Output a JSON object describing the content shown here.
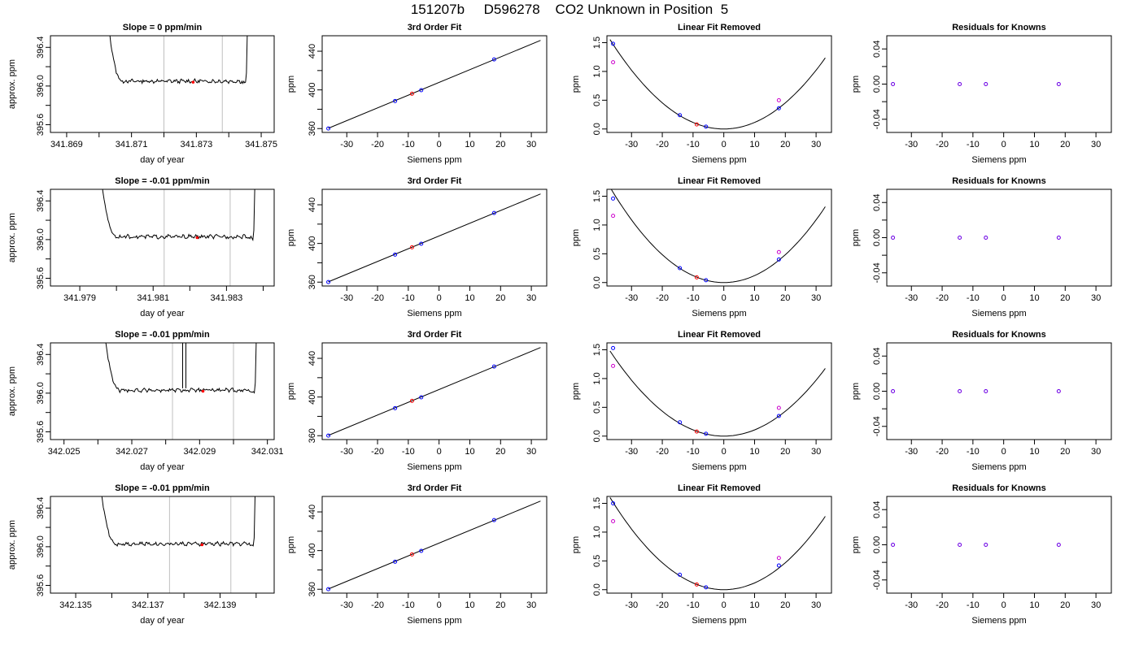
{
  "figure_title": "151207b     D596278    CO2 Unknown in Position  5",
  "colors": {
    "line": "#000000",
    "frame": "#000000",
    "marker_red": "#ff0000",
    "marker_blue": "#0000ff",
    "marker_magenta": "#cc00cc",
    "vline": "#bfbfbf"
  },
  "chart_data": [
    {
      "row": 0,
      "panel": "timeseries",
      "type": "line",
      "title": "Slope =  0  ppm/min",
      "xlabel": "day of year",
      "ylabel": "approx. ppm",
      "xlim": [
        341.8685,
        341.8754
      ],
      "ylim": [
        395.52,
        396.52
      ],
      "xticks": [
        341.869,
        341.871,
        341.873,
        341.875
      ],
      "xticklabels": [
        "341.869",
        "341.871",
        "341.873",
        "341.875"
      ],
      "xminor": [
        341.87,
        341.872,
        341.874
      ],
      "yticks": [
        395.6,
        396.0,
        396.4
      ],
      "yticklabels": [
        "395.6",
        "396.0",
        "396.4"
      ],
      "yminor": [
        395.8,
        396.2
      ],
      "trace_start": 341.8702,
      "trace_end": 341.8746,
      "baseline": 396.05,
      "vlines": [
        341.872,
        341.8738
      ],
      "marker": {
        "x": 341.8729,
        "y": 396.04
      }
    },
    {
      "row": 0,
      "panel": "fit",
      "type": "scatter",
      "title": "3rd Order Fit",
      "xlabel": "Siemens ppm",
      "ylabel": "ppm",
      "xlim": [
        -38,
        35
      ],
      "ylim": [
        356,
        456
      ],
      "xticks": [
        -30,
        -20,
        -10,
        0,
        10,
        20,
        30
      ],
      "xticklabels": [
        "-30",
        "-20",
        "-10",
        "0",
        "10",
        "20",
        "30"
      ],
      "yticks": [
        360,
        400,
        440
      ],
      "yticklabels": [
        "360",
        "400",
        "440"
      ],
      "yminor": [
        380,
        420
      ],
      "line": {
        "x": [
          -36,
          33
        ],
        "y": [
          360.3,
          451.2
        ]
      },
      "knowns": {
        "x": [
          -36.0,
          -14.3,
          -5.8,
          17.9
        ],
        "y": [
          360.1,
          388.5,
          399.7,
          431.5
        ]
      },
      "unknown": {
        "x": [
          -8.8
        ],
        "y": [
          396.0
        ]
      }
    },
    {
      "row": 0,
      "panel": "residual_linear",
      "type": "scatter",
      "title": "Linear Fit Removed",
      "xlabel": "Siemens ppm",
      "ylabel": "ppm",
      "xlim": [
        -38,
        35
      ],
      "ylim": [
        -0.06,
        1.62
      ],
      "xticks": [
        -30,
        -20,
        -10,
        0,
        10,
        20,
        30
      ],
      "xticklabels": [
        "-30",
        "-20",
        "-10",
        "0",
        "10",
        "20",
        "30"
      ],
      "yticks": [
        0.0,
        0.5,
        1.0,
        1.5
      ],
      "yticklabels": [
        "0.0",
        "0.5",
        "1.0",
        "1.5"
      ],
      "curve_coef": 0.001135,
      "knowns": {
        "x": [
          -36.0,
          -14.3,
          -5.8,
          17.9
        ],
        "y": [
          1.48,
          0.24,
          0.04,
          0.36
        ]
      },
      "knowns_alt": {
        "x": [
          -36.0,
          17.9
        ],
        "y": [
          1.16,
          0.5
        ]
      },
      "unknown": {
        "x": [
          -8.8
        ],
        "y": [
          0.08
        ]
      }
    },
    {
      "row": 0,
      "panel": "residual_knowns",
      "type": "scatter",
      "title": "Residuals for Knowns",
      "xlabel": "Siemens ppm",
      "ylabel": "ppm",
      "xlim": [
        -38,
        35
      ],
      "ylim": [
        -0.055,
        0.055
      ],
      "xticks": [
        -30,
        -20,
        -10,
        0,
        10,
        20,
        30
      ],
      "xticklabels": [
        "-30",
        "-20",
        "-10",
        "0",
        "10",
        "20",
        "30"
      ],
      "yticks": [
        -0.04,
        0.0,
        0.04
      ],
      "yticklabels": [
        "-0.04",
        "0.00",
        "0.04"
      ],
      "yminor": [
        -0.02,
        0.02
      ],
      "knowns": {
        "x": [
          -36.0,
          -14.3,
          -5.8,
          17.9
        ],
        "y": [
          0,
          0,
          0,
          0
        ]
      }
    },
    {
      "row": 1,
      "panel": "timeseries",
      "type": "line",
      "title": "Slope =  -0.01  ppm/min",
      "xlabel": "day of year",
      "ylabel": "approx. ppm",
      "xlim": [
        341.9782,
        341.9843
      ],
      "ylim": [
        395.52,
        396.52
      ],
      "xticks": [
        341.979,
        341.981,
        341.983
      ],
      "xticklabels": [
        "341.979",
        "341.981",
        "341.983"
      ],
      "xminor": [
        341.98,
        341.982,
        341.984
      ],
      "yticks": [
        395.6,
        396.0,
        396.4
      ],
      "yticklabels": [
        "395.6",
        "396.0",
        "396.4"
      ],
      "yminor": [
        395.8,
        396.2
      ],
      "trace_start": 341.9795,
      "trace_end": 341.9838,
      "baseline": 396.03,
      "vlines": [
        341.9813,
        341.9831
      ],
      "marker": {
        "x": 341.9822,
        "y": 396.02
      }
    },
    {
      "row": 1,
      "panel": "fit",
      "type": "scatter",
      "title": "3rd Order Fit",
      "xlabel": "Siemens ppm",
      "ylabel": "ppm",
      "xlim": [
        -38,
        35
      ],
      "ylim": [
        356,
        456
      ],
      "xticks": [
        -30,
        -20,
        -10,
        0,
        10,
        20,
        30
      ],
      "xticklabels": [
        "-30",
        "-20",
        "-10",
        "0",
        "10",
        "20",
        "30"
      ],
      "yticks": [
        360,
        400,
        440
      ],
      "yticklabels": [
        "360",
        "400",
        "440"
      ],
      "yminor": [
        380,
        420
      ],
      "line": {
        "x": [
          -36,
          33
        ],
        "y": [
          360.3,
          451.2
        ]
      },
      "knowns": {
        "x": [
          -36.0,
          -14.3,
          -5.8,
          17.9
        ],
        "y": [
          360.1,
          388.5,
          399.7,
          431.5
        ]
      },
      "unknown": {
        "x": [
          -8.8
        ],
        "y": [
          396.0
        ]
      }
    },
    {
      "row": 1,
      "panel": "residual_linear",
      "type": "scatter",
      "title": "Linear Fit Removed",
      "xlabel": "Siemens ppm",
      "ylabel": "ppm",
      "xlim": [
        -38,
        35
      ],
      "ylim": [
        -0.06,
        1.62
      ],
      "xticks": [
        -30,
        -20,
        -10,
        0,
        10,
        20,
        30
      ],
      "xticklabels": [
        "-30",
        "-20",
        "-10",
        "0",
        "10",
        "20",
        "30"
      ],
      "yticks": [
        0.0,
        0.5,
        1.0,
        1.5
      ],
      "yticklabels": [
        "0.0",
        "0.5",
        "1.0",
        "1.5"
      ],
      "curve_coef": 0.00121,
      "knowns": {
        "x": [
          -36.0,
          -14.3,
          -5.8,
          17.9
        ],
        "y": [
          1.46,
          0.25,
          0.04,
          0.4
        ]
      },
      "knowns_alt": {
        "x": [
          -36.0,
          17.9
        ],
        "y": [
          1.16,
          0.53
        ]
      },
      "unknown": {
        "x": [
          -8.8
        ],
        "y": [
          0.09
        ]
      }
    },
    {
      "row": 1,
      "panel": "residual_knowns",
      "type": "scatter",
      "title": "Residuals for Knowns",
      "xlabel": "Siemens ppm",
      "ylabel": "ppm",
      "xlim": [
        -38,
        35
      ],
      "ylim": [
        -0.055,
        0.055
      ],
      "xticks": [
        -30,
        -20,
        -10,
        0,
        10,
        20,
        30
      ],
      "xticklabels": [
        "-30",
        "-20",
        "-10",
        "0",
        "10",
        "20",
        "30"
      ],
      "yticks": [
        -0.04,
        0.0,
        0.04
      ],
      "yticklabels": [
        "-0.04",
        "0.00",
        "0.04"
      ],
      "yminor": [
        -0.02,
        0.02
      ],
      "knowns": {
        "x": [
          -36.0,
          -14.3,
          -5.8,
          17.9
        ],
        "y": [
          0,
          0,
          0,
          0
        ]
      }
    },
    {
      "row": 2,
      "panel": "timeseries",
      "type": "line",
      "title": "Slope =  -0.01  ppm/min",
      "xlabel": "day of year",
      "ylabel": "approx. ppm",
      "xlim": [
        342.0246,
        342.0312
      ],
      "ylim": [
        395.52,
        396.52
      ],
      "xticks": [
        342.025,
        342.027,
        342.029,
        342.031
      ],
      "xticklabels": [
        "342.025",
        "342.027",
        "342.029",
        "342.031"
      ],
      "xminor": [
        342.026,
        342.028,
        342.03
      ],
      "yticks": [
        395.6,
        396.0,
        396.4
      ],
      "yticklabels": [
        "395.6",
        "396.0",
        "396.4"
      ],
      "yminor": [
        395.8,
        396.2
      ],
      "trace_start": 342.0261,
      "trace_end": 342.0307,
      "baseline": 396.03,
      "vlines": [
        342.0282,
        342.03
      ],
      "spike": 342.0285,
      "marker": {
        "x": 342.0291,
        "y": 396.02
      }
    },
    {
      "row": 2,
      "panel": "fit",
      "type": "scatter",
      "title": "3rd Order Fit",
      "xlabel": "Siemens ppm",
      "ylabel": "ppm",
      "xlim": [
        -38,
        35
      ],
      "ylim": [
        356,
        456
      ],
      "xticks": [
        -30,
        -20,
        -10,
        0,
        10,
        20,
        30
      ],
      "xticklabels": [
        "-30",
        "-20",
        "-10",
        "0",
        "10",
        "20",
        "30"
      ],
      "yticks": [
        360,
        400,
        440
      ],
      "yticklabels": [
        "360",
        "400",
        "440"
      ],
      "yminor": [
        380,
        420
      ],
      "line": {
        "x": [
          -36,
          33
        ],
        "y": [
          360.3,
          451.2
        ]
      },
      "knowns": {
        "x": [
          -36.0,
          -14.3,
          -5.8,
          17.9
        ],
        "y": [
          360.1,
          388.5,
          399.7,
          431.5
        ]
      },
      "unknown": {
        "x": [
          -8.8
        ],
        "y": [
          396.0
        ]
      }
    },
    {
      "row": 2,
      "panel": "residual_linear",
      "type": "scatter",
      "title": "Linear Fit Removed",
      "xlabel": "Siemens ppm",
      "ylabel": "ppm",
      "xlim": [
        -38,
        35
      ],
      "ylim": [
        -0.06,
        1.62
      ],
      "xticks": [
        -30,
        -20,
        -10,
        0,
        10,
        20,
        30
      ],
      "xticklabels": [
        "-30",
        "-20",
        "-10",
        "0",
        "10",
        "20",
        "30"
      ],
      "yticks": [
        0.0,
        0.5,
        1.0,
        1.5
      ],
      "yticklabels": [
        "0.0",
        "0.5",
        "1.0",
        "1.5"
      ],
      "curve_coef": 0.00108,
      "knowns": {
        "x": [
          -36.0,
          -14.3,
          -5.8,
          17.9
        ],
        "y": [
          1.53,
          0.24,
          0.04,
          0.35
        ]
      },
      "knowns_alt": {
        "x": [
          -36.0,
          17.9
        ],
        "y": [
          1.22,
          0.49
        ]
      },
      "unknown": {
        "x": [
          -8.8
        ],
        "y": [
          0.08
        ]
      }
    },
    {
      "row": 2,
      "panel": "residual_knowns",
      "type": "scatter",
      "title": "Residuals for Knowns",
      "xlabel": "Siemens ppm",
      "ylabel": "ppm",
      "xlim": [
        -38,
        35
      ],
      "ylim": [
        -0.055,
        0.055
      ],
      "xticks": [
        -30,
        -20,
        -10,
        0,
        10,
        20,
        30
      ],
      "xticklabels": [
        "-30",
        "-20",
        "-10",
        "0",
        "10",
        "20",
        "30"
      ],
      "yticks": [
        -0.04,
        0.0,
        0.04
      ],
      "yticklabels": [
        "-0.04",
        "0.00",
        "0.04"
      ],
      "yminor": [
        -0.02,
        0.02
      ],
      "knowns": {
        "x": [
          -36.0,
          -14.3,
          -5.8,
          17.9
        ],
        "y": [
          0,
          0,
          0,
          0
        ]
      }
    },
    {
      "row": 3,
      "panel": "timeseries",
      "type": "line",
      "title": "Slope =  -0.01  ppm/min",
      "xlabel": "day of year",
      "ylabel": "approx. ppm",
      "xlim": [
        342.1343,
        342.1405
      ],
      "ylim": [
        395.52,
        396.52
      ],
      "xticks": [
        342.135,
        342.137,
        342.139
      ],
      "xticklabels": [
        "342.135",
        "342.137",
        "342.139"
      ],
      "xminor": [
        342.136,
        342.138,
        342.14
      ],
      "yticks": [
        395.6,
        396.0,
        396.4
      ],
      "yticklabels": [
        "395.6",
        "396.0",
        "396.4"
      ],
      "yminor": [
        395.8,
        396.2
      ],
      "trace_start": 342.1356,
      "trace_end": 342.14,
      "baseline": 396.03,
      "vlines": [
        342.1376,
        342.1393
      ],
      "marker": {
        "x": 342.1385,
        "y": 396.02
      }
    },
    {
      "row": 3,
      "panel": "fit",
      "type": "scatter",
      "title": "3rd Order Fit",
      "xlabel": "Siemens ppm",
      "ylabel": "ppm",
      "xlim": [
        -38,
        35
      ],
      "ylim": [
        356,
        456
      ],
      "xticks": [
        -30,
        -20,
        -10,
        0,
        10,
        20,
        30
      ],
      "xticklabels": [
        "-30",
        "-20",
        "-10",
        "0",
        "10",
        "20",
        "30"
      ],
      "yticks": [
        360,
        400,
        440
      ],
      "yticklabels": [
        "360",
        "400",
        "440"
      ],
      "yminor": [
        380,
        420
      ],
      "line": {
        "x": [
          -36,
          33
        ],
        "y": [
          360.3,
          451.2
        ]
      },
      "knowns": {
        "x": [
          -36.0,
          -14.3,
          -5.8,
          17.9
        ],
        "y": [
          360.1,
          388.5,
          399.7,
          431.5
        ]
      },
      "unknown": {
        "x": [
          -8.8
        ],
        "y": [
          396.0
        ]
      }
    },
    {
      "row": 3,
      "panel": "residual_linear",
      "type": "scatter",
      "title": "Linear Fit Removed",
      "xlabel": "Siemens ppm",
      "ylabel": "ppm",
      "xlim": [
        -38,
        35
      ],
      "ylim": [
        -0.06,
        1.62
      ],
      "xticks": [
        -30,
        -20,
        -10,
        0,
        10,
        20,
        30
      ],
      "xticklabels": [
        "-30",
        "-20",
        "-10",
        "0",
        "10",
        "20",
        "30"
      ],
      "yticks": [
        0.0,
        0.5,
        1.0,
        1.5
      ],
      "yticklabels": [
        "0.0",
        "0.5",
        "1.0",
        "1.5"
      ],
      "curve_coef": 0.00117,
      "knowns": {
        "x": [
          -36.0,
          -14.3,
          -5.8,
          17.9
        ],
        "y": [
          1.5,
          0.26,
          0.04,
          0.42
        ]
      },
      "knowns_alt": {
        "x": [
          -36.0,
          17.9
        ],
        "y": [
          1.19,
          0.55
        ]
      },
      "unknown": {
        "x": [
          -8.8
        ],
        "y": [
          0.09
        ]
      }
    },
    {
      "row": 3,
      "panel": "residual_knowns",
      "type": "scatter",
      "title": "Residuals for Knowns",
      "xlabel": "Siemens ppm",
      "ylabel": "ppm",
      "xlim": [
        -38,
        35
      ],
      "ylim": [
        -0.055,
        0.055
      ],
      "xticks": [
        -30,
        -20,
        -10,
        0,
        10,
        20,
        30
      ],
      "xticklabels": [
        "-30",
        "-20",
        "-10",
        "0",
        "10",
        "20",
        "30"
      ],
      "yticks": [
        -0.04,
        0.0,
        0.04
      ],
      "yticklabels": [
        "-0.04",
        "0.00",
        "0.04"
      ],
      "yminor": [
        -0.02,
        0.02
      ],
      "knowns": {
        "x": [
          -36.0,
          -14.3,
          -5.8,
          17.9
        ],
        "y": [
          0,
          0,
          0,
          0
        ]
      }
    }
  ]
}
